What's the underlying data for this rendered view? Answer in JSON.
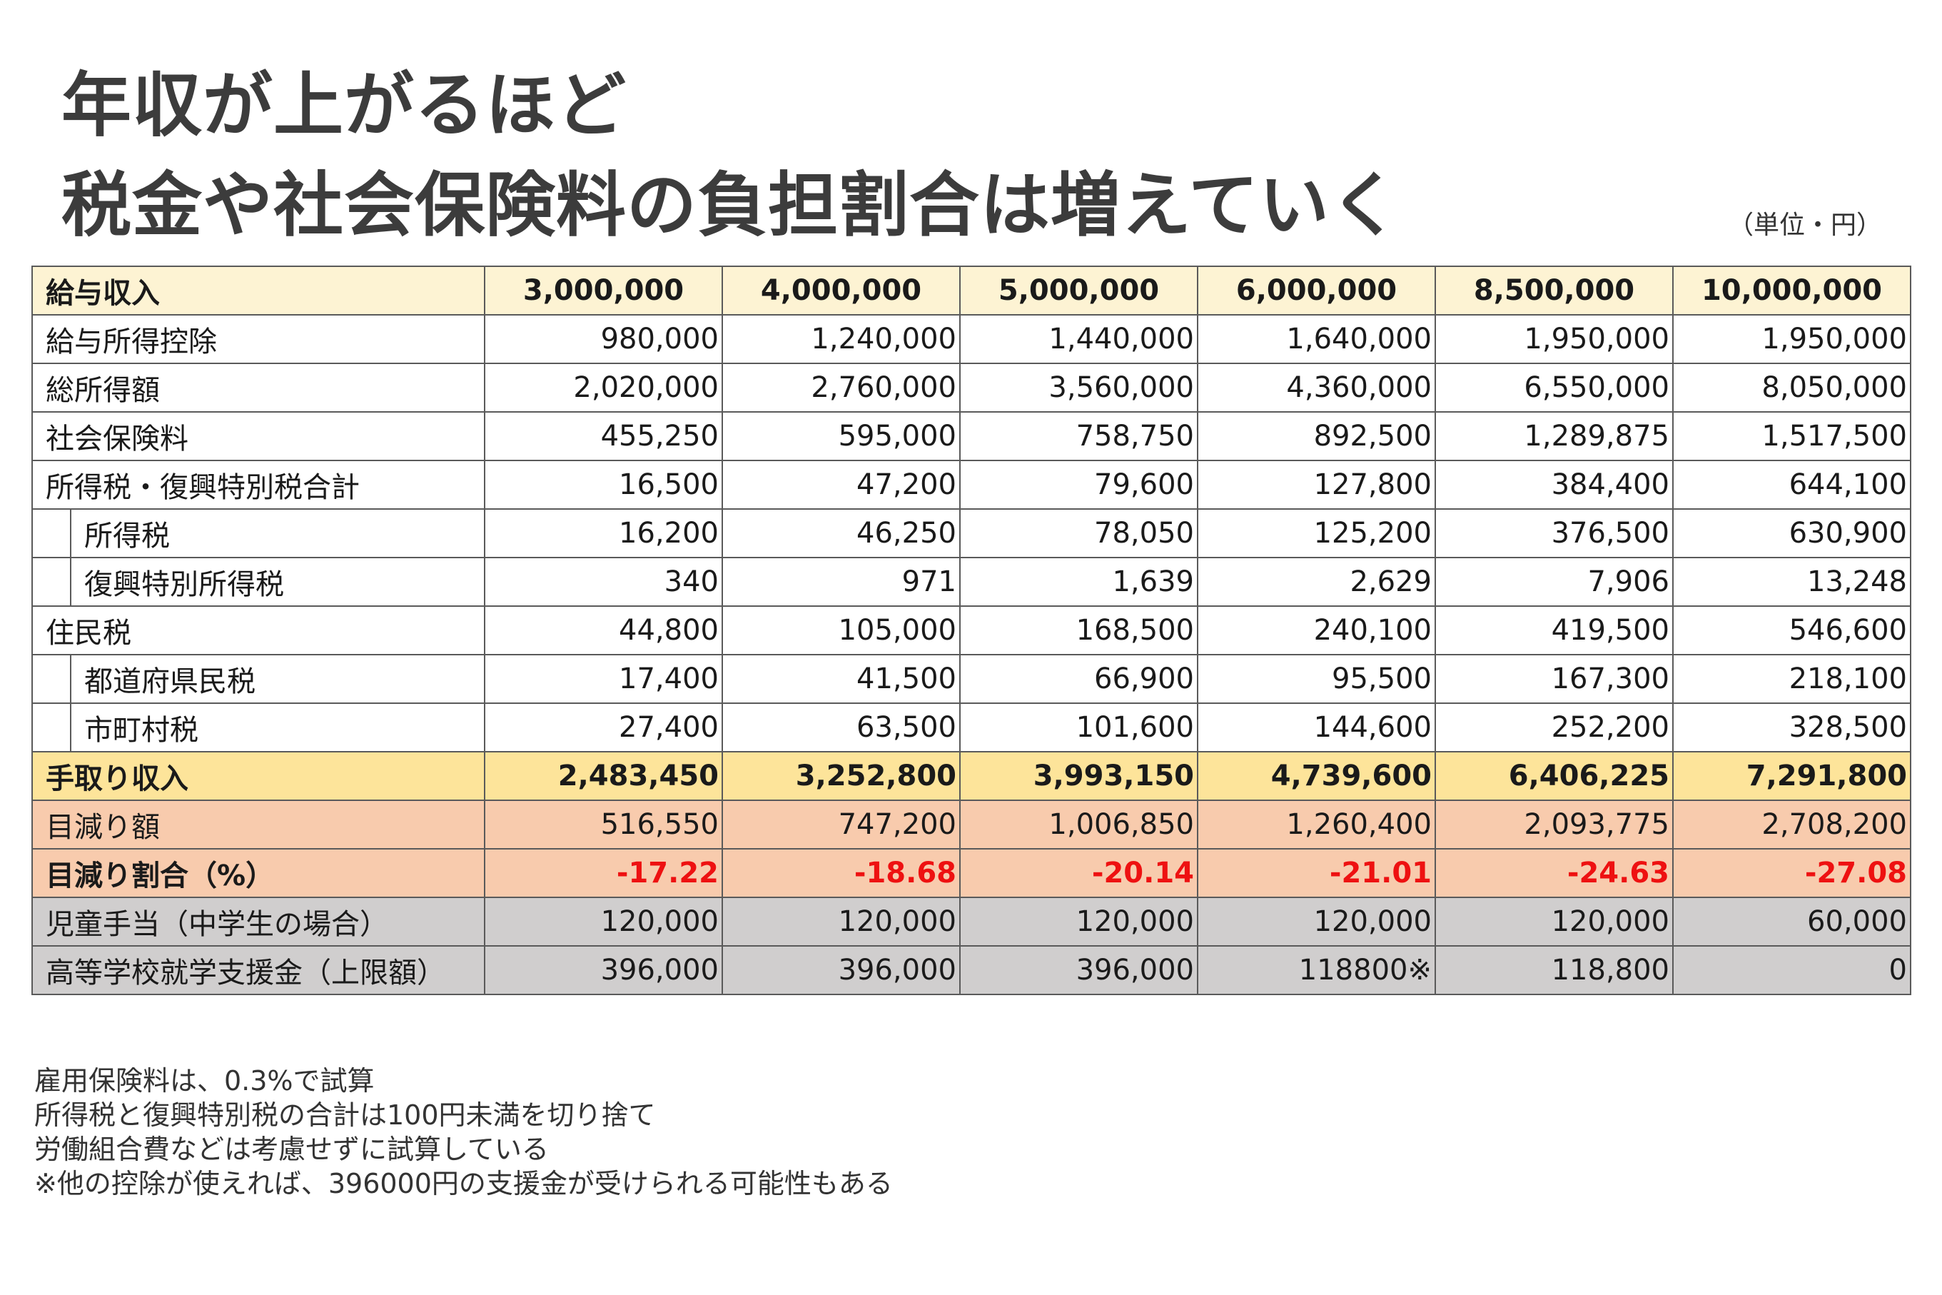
{
  "title": {
    "line1": "年収が上がるほど",
    "line2": "税金や社会保険料の負担割合は増えていく"
  },
  "unit_label": "（単位・円）",
  "table": {
    "header": {
      "label": "給与収入",
      "values": [
        "3,000,000",
        "4,000,000",
        "5,000,000",
        "6,000,000",
        "8,500,000",
        "10,000,000"
      ]
    },
    "rows": [
      {
        "label": "給与所得控除",
        "values": [
          "980,000",
          "1,240,000",
          "1,440,000",
          "1,640,000",
          "1,950,000",
          "1,950,000"
        ]
      },
      {
        "label": "総所得額",
        "values": [
          "2,020,000",
          "2,760,000",
          "3,560,000",
          "4,360,000",
          "6,550,000",
          "8,050,000"
        ]
      },
      {
        "label": "社会保険料",
        "values": [
          "455,250",
          "595,000",
          "758,750",
          "892,500",
          "1,289,875",
          "1,517,500"
        ]
      },
      {
        "label": "所得税・復興特別税合計",
        "values": [
          "16,500",
          "47,200",
          "79,600",
          "127,800",
          "384,400",
          "644,100"
        ]
      },
      {
        "label": "所得税",
        "values": [
          "16,200",
          "46,250",
          "78,050",
          "125,200",
          "376,500",
          "630,900"
        ]
      },
      {
        "label": "復興特別所得税",
        "values": [
          "340",
          "971",
          "1,639",
          "2,629",
          "7,906",
          "13,248"
        ]
      },
      {
        "label": "住民税",
        "values": [
          "44,800",
          "105,000",
          "168,500",
          "240,100",
          "419,500",
          "546,600"
        ]
      },
      {
        "label": "都道府県民税",
        "values": [
          "17,400",
          "41,500",
          "66,900",
          "95,500",
          "167,300",
          "218,100"
        ]
      },
      {
        "label": "市町村税",
        "values": [
          "27,400",
          "63,500",
          "101,600",
          "144,600",
          "252,200",
          "328,500"
        ]
      },
      {
        "label": "手取り収入",
        "values": [
          "2,483,450",
          "3,252,800",
          "3,993,150",
          "4,739,600",
          "6,406,225",
          "7,291,800"
        ]
      },
      {
        "label": "目減り額",
        "values": [
          "516,550",
          "747,200",
          "1,006,850",
          "1,260,400",
          "2,093,775",
          "2,708,200"
        ]
      },
      {
        "label": "目減り割合（%）",
        "values": [
          "-17.22",
          "-18.68",
          "-20.14",
          "-21.01",
          "-24.63",
          "-27.08"
        ]
      },
      {
        "label": "児童手当（中学生の場合）",
        "values": [
          "120,000",
          "120,000",
          "120,000",
          "120,000",
          "120,000",
          "60,000"
        ]
      },
      {
        "label": "高等学校就学支援金（上限額）",
        "values": [
          "396,000",
          "396,000",
          "396,000",
          "118800※",
          "118,800",
          "0"
        ]
      }
    ]
  },
  "notes": [
    "雇用保険料は、0.3%で試算",
    "所得税と復興特別税の合計は100円未満を切り捨て",
    "労働組合費などは考慮せずに試算している",
    "※他の控除が使えれば、396000円の支援金が受けられる可能性もある"
  ],
  "colors": {
    "header_bg": "#fdf3d3",
    "takehome_bg": "#fde49a",
    "reduction_bg": "#f8cbad",
    "reduction_rate_text": "#ee1111",
    "allowance_bg": "#d0cece",
    "title_text": "#3c3c3c"
  }
}
